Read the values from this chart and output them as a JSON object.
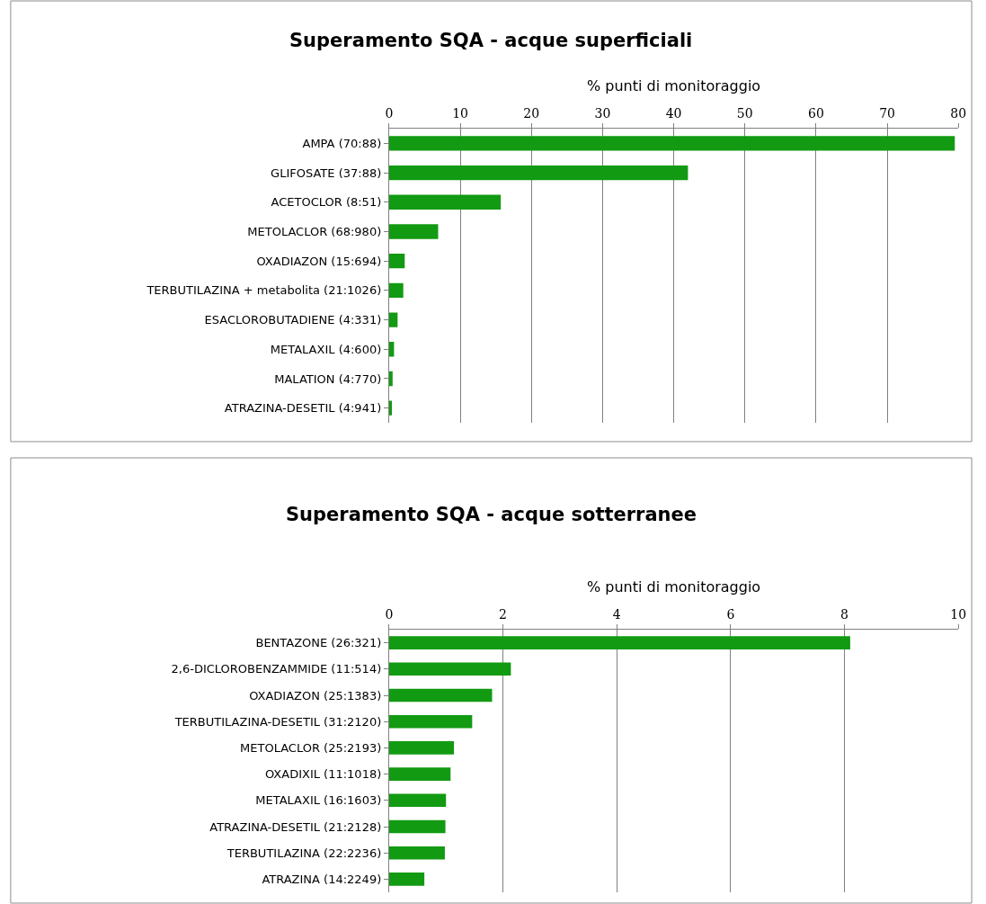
{
  "chart_data": [
    {
      "type": "bar",
      "orientation": "horizontal",
      "title": "Superamento SQA - acque superficiali",
      "xlabel": "% punti di monitoraggio",
      "categories": [
        "AMPA (70:88)",
        "GLIFOSATE (37:88)",
        "ACETOCLOR (8:51)",
        "METOLACLOR (68:980)",
        "OXADIAZON (15:694)",
        "TERBUTILAZINA + metabolita (21:1026)",
        "ESACLOROBUTADIENE (4:331)",
        "METALAXIL (4:600)",
        "MALATION (4:770)",
        "ATRAZINA-DESETIL (4:941)"
      ],
      "values": [
        79.5,
        42,
        15.7,
        6.9,
        2.2,
        2.0,
        1.2,
        0.7,
        0.5,
        0.4
      ],
      "color": "#129a12",
      "xlim": [
        0,
        80
      ],
      "xticks": [
        0,
        10,
        20,
        30,
        40,
        50,
        60,
        70,
        80
      ],
      "grid": "x"
    },
    {
      "type": "bar",
      "orientation": "horizontal",
      "title": "Superamento SQA - acque sotterranee",
      "xlabel": "% punti di monitoraggio",
      "categories": [
        "BENTAZONE (26:321)",
        "2,6-DICLOROBENZAMMIDE (11:514)",
        "OXADIAZON (25:1383)",
        "TERBUTILAZINA-DESETIL (31:2120)",
        "METOLACLOR (25:2193)",
        "OXADIXIL (11:1018)",
        "METALAXIL (16:1603)",
        "ATRAZINA-DESETIL (21:2128)",
        "TERBUTILAZINA (22:2236)",
        "ATRAZINA (14:2249)"
      ],
      "values": [
        8.1,
        2.14,
        1.81,
        1.46,
        1.14,
        1.08,
        1.0,
        0.99,
        0.98,
        0.62
      ],
      "color": "#129a12",
      "xlim": [
        0,
        10
      ],
      "xticks": [
        0,
        2,
        4,
        6,
        8,
        10
      ],
      "grid": "x"
    }
  ]
}
